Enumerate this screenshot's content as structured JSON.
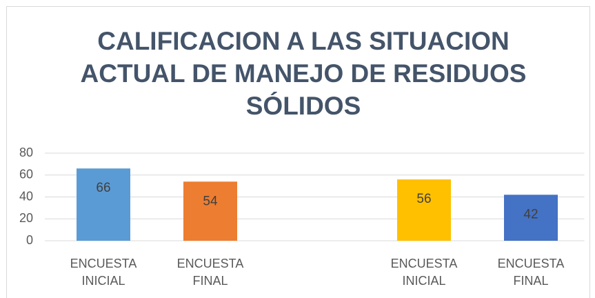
{
  "chart_data": {
    "type": "bar",
    "title": "CALIFICACION A LAS SITUACION ACTUAL DE MANEJO DE RESIDUOS SÓLIDOS",
    "categories": [
      "ENCUESTA INICIAL",
      "ENCUESTA FINAL",
      null,
      "ENCUESTA INICIAL",
      "ENCUESTA FINAL"
    ],
    "values": [
      66,
      54,
      null,
      56,
      42
    ],
    "colors": [
      "#5b9bd5",
      "#ed7d31",
      null,
      "#ffc000",
      "#4472c4"
    ],
    "ylim": [
      0,
      80
    ],
    "yticks": [
      0,
      20,
      40,
      60,
      80
    ],
    "grid": true
  }
}
